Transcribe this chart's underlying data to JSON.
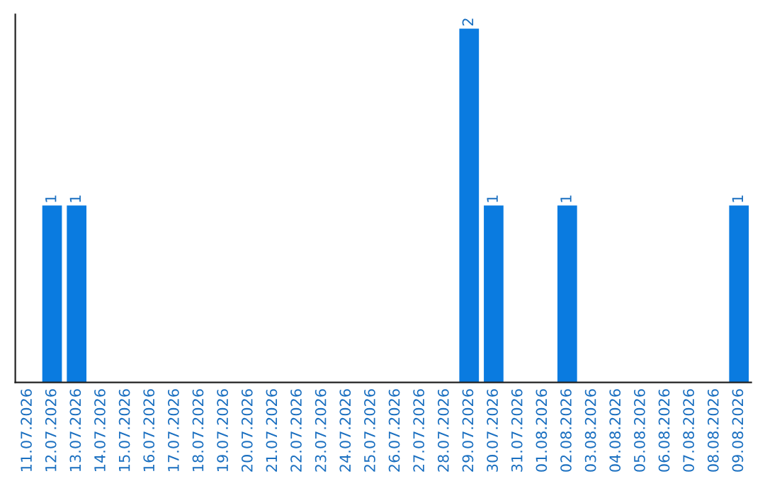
{
  "chart_data": {
    "type": "bar",
    "categories": [
      "11.07.2026",
      "12.07.2026",
      "13.07.2026",
      "14.07.2026",
      "15.07.2026",
      "16.07.2026",
      "17.07.2026",
      "18.07.2026",
      "19.07.2026",
      "20.07.2026",
      "21.07.2026",
      "22.07.2026",
      "23.07.2026",
      "24.07.2026",
      "25.07.2026",
      "26.07.2026",
      "27.07.2026",
      "28.07.2026",
      "29.07.2026",
      "30.07.2026",
      "31.07.2026",
      "01.08.2026",
      "02.08.2026",
      "03.08.2026",
      "04.08.2026",
      "05.08.2026",
      "06.08.2026",
      "07.08.2026",
      "08.08.2026",
      "09.08.2026"
    ],
    "values": [
      0,
      1,
      1,
      0,
      0,
      0,
      0,
      0,
      0,
      0,
      0,
      0,
      0,
      0,
      0,
      0,
      0,
      0,
      2,
      1,
      0,
      0,
      1,
      0,
      0,
      0,
      0,
      0,
      0,
      1
    ],
    "value_labels": [
      null,
      "1",
      "1",
      null,
      null,
      null,
      null,
      null,
      null,
      null,
      null,
      null,
      null,
      null,
      null,
      null,
      null,
      null,
      "2",
      "1",
      null,
      null,
      "1",
      null,
      null,
      null,
      null,
      null,
      null,
      "1"
    ],
    "color": "#0a7be0",
    "ylim": [
      0,
      2.08
    ],
    "tick_labels": "x",
    "grid": false,
    "legend": false
  }
}
